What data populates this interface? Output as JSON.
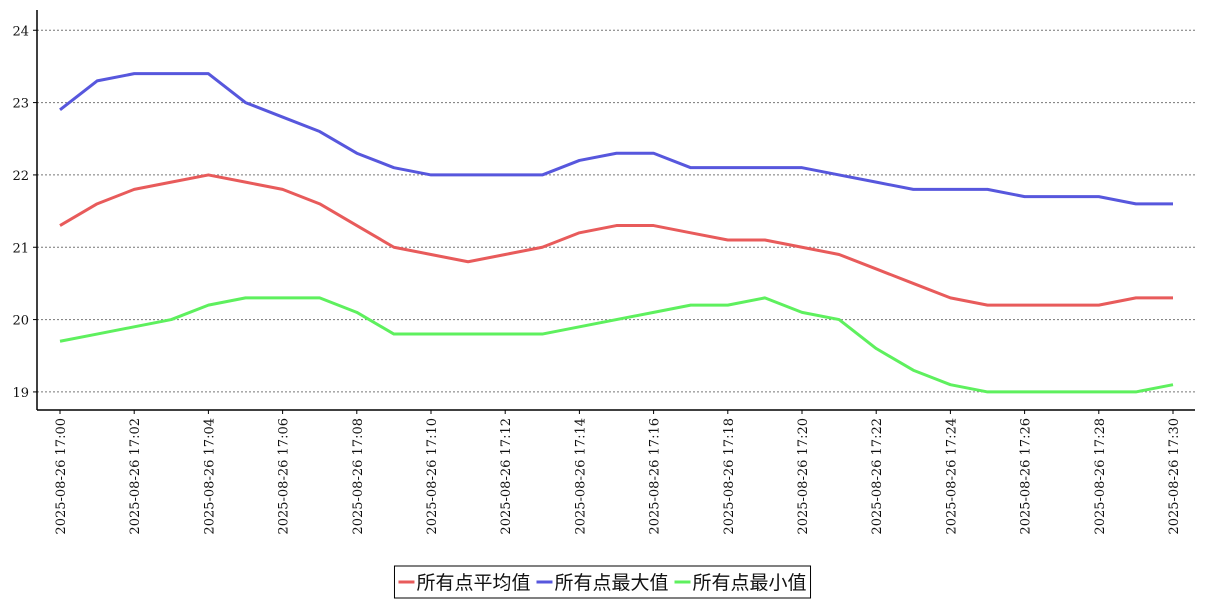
{
  "chart_data": {
    "type": "line",
    "categories": [
      "2025-08-26 17:00",
      null,
      "2025-08-26 17:02",
      null,
      "2025-08-26 17:04",
      null,
      "2025-08-26 17:06",
      null,
      "2025-08-26 17:08",
      null,
      "2025-08-26 17:10",
      null,
      "2025-08-26 17:12",
      null,
      "2025-08-26 17:14",
      null,
      "2025-08-26 17:16",
      null,
      "2025-08-26 17:18",
      null,
      "2025-08-26 17:20",
      null,
      "2025-08-26 17:22",
      null,
      "2025-08-26 17:24",
      null,
      "2025-08-26 17:26",
      null,
      "2025-08-26 17:28",
      null,
      "2025-08-26 17:30"
    ],
    "series": [
      {
        "name": "所有点平均值",
        "color": "#e85b5b",
        "values": [
          21.3,
          21.6,
          21.8,
          21.9,
          22.0,
          21.9,
          21.8,
          21.6,
          21.3,
          21.0,
          20.9,
          20.8,
          20.9,
          21.0,
          21.2,
          21.3,
          21.3,
          21.2,
          21.1,
          21.1,
          21.0,
          20.9,
          20.7,
          20.5,
          20.3,
          20.2,
          20.2,
          20.2,
          20.2,
          20.3,
          20.3
        ]
      },
      {
        "name": "所有点最大值",
        "color": "#5757dd",
        "values": [
          22.9,
          23.3,
          23.4,
          23.4,
          23.4,
          23.0,
          22.8,
          22.6,
          22.3,
          22.1,
          22.0,
          22.0,
          22.0,
          22.0,
          22.2,
          22.3,
          22.3,
          22.1,
          22.1,
          22.1,
          22.1,
          22.0,
          21.9,
          21.8,
          21.8,
          21.8,
          21.7,
          21.7,
          21.7,
          21.6,
          21.6
        ]
      },
      {
        "name": "所有点最小值",
        "color": "#5ef05e",
        "values": [
          19.7,
          19.8,
          19.9,
          20.0,
          20.2,
          20.3,
          20.3,
          20.3,
          20.1,
          19.8,
          19.8,
          19.8,
          19.8,
          19.8,
          19.9,
          20.0,
          20.1,
          20.2,
          20.2,
          20.3,
          20.1,
          20.0,
          19.6,
          19.3,
          19.1,
          19.0,
          19.0,
          19.0,
          19.0,
          19.0,
          19.1
        ]
      }
    ],
    "ylim": [
      18.75,
      24.28
    ],
    "yticks": [
      19,
      20,
      21,
      22,
      23,
      24
    ],
    "grid": true,
    "legend": "bottom"
  }
}
